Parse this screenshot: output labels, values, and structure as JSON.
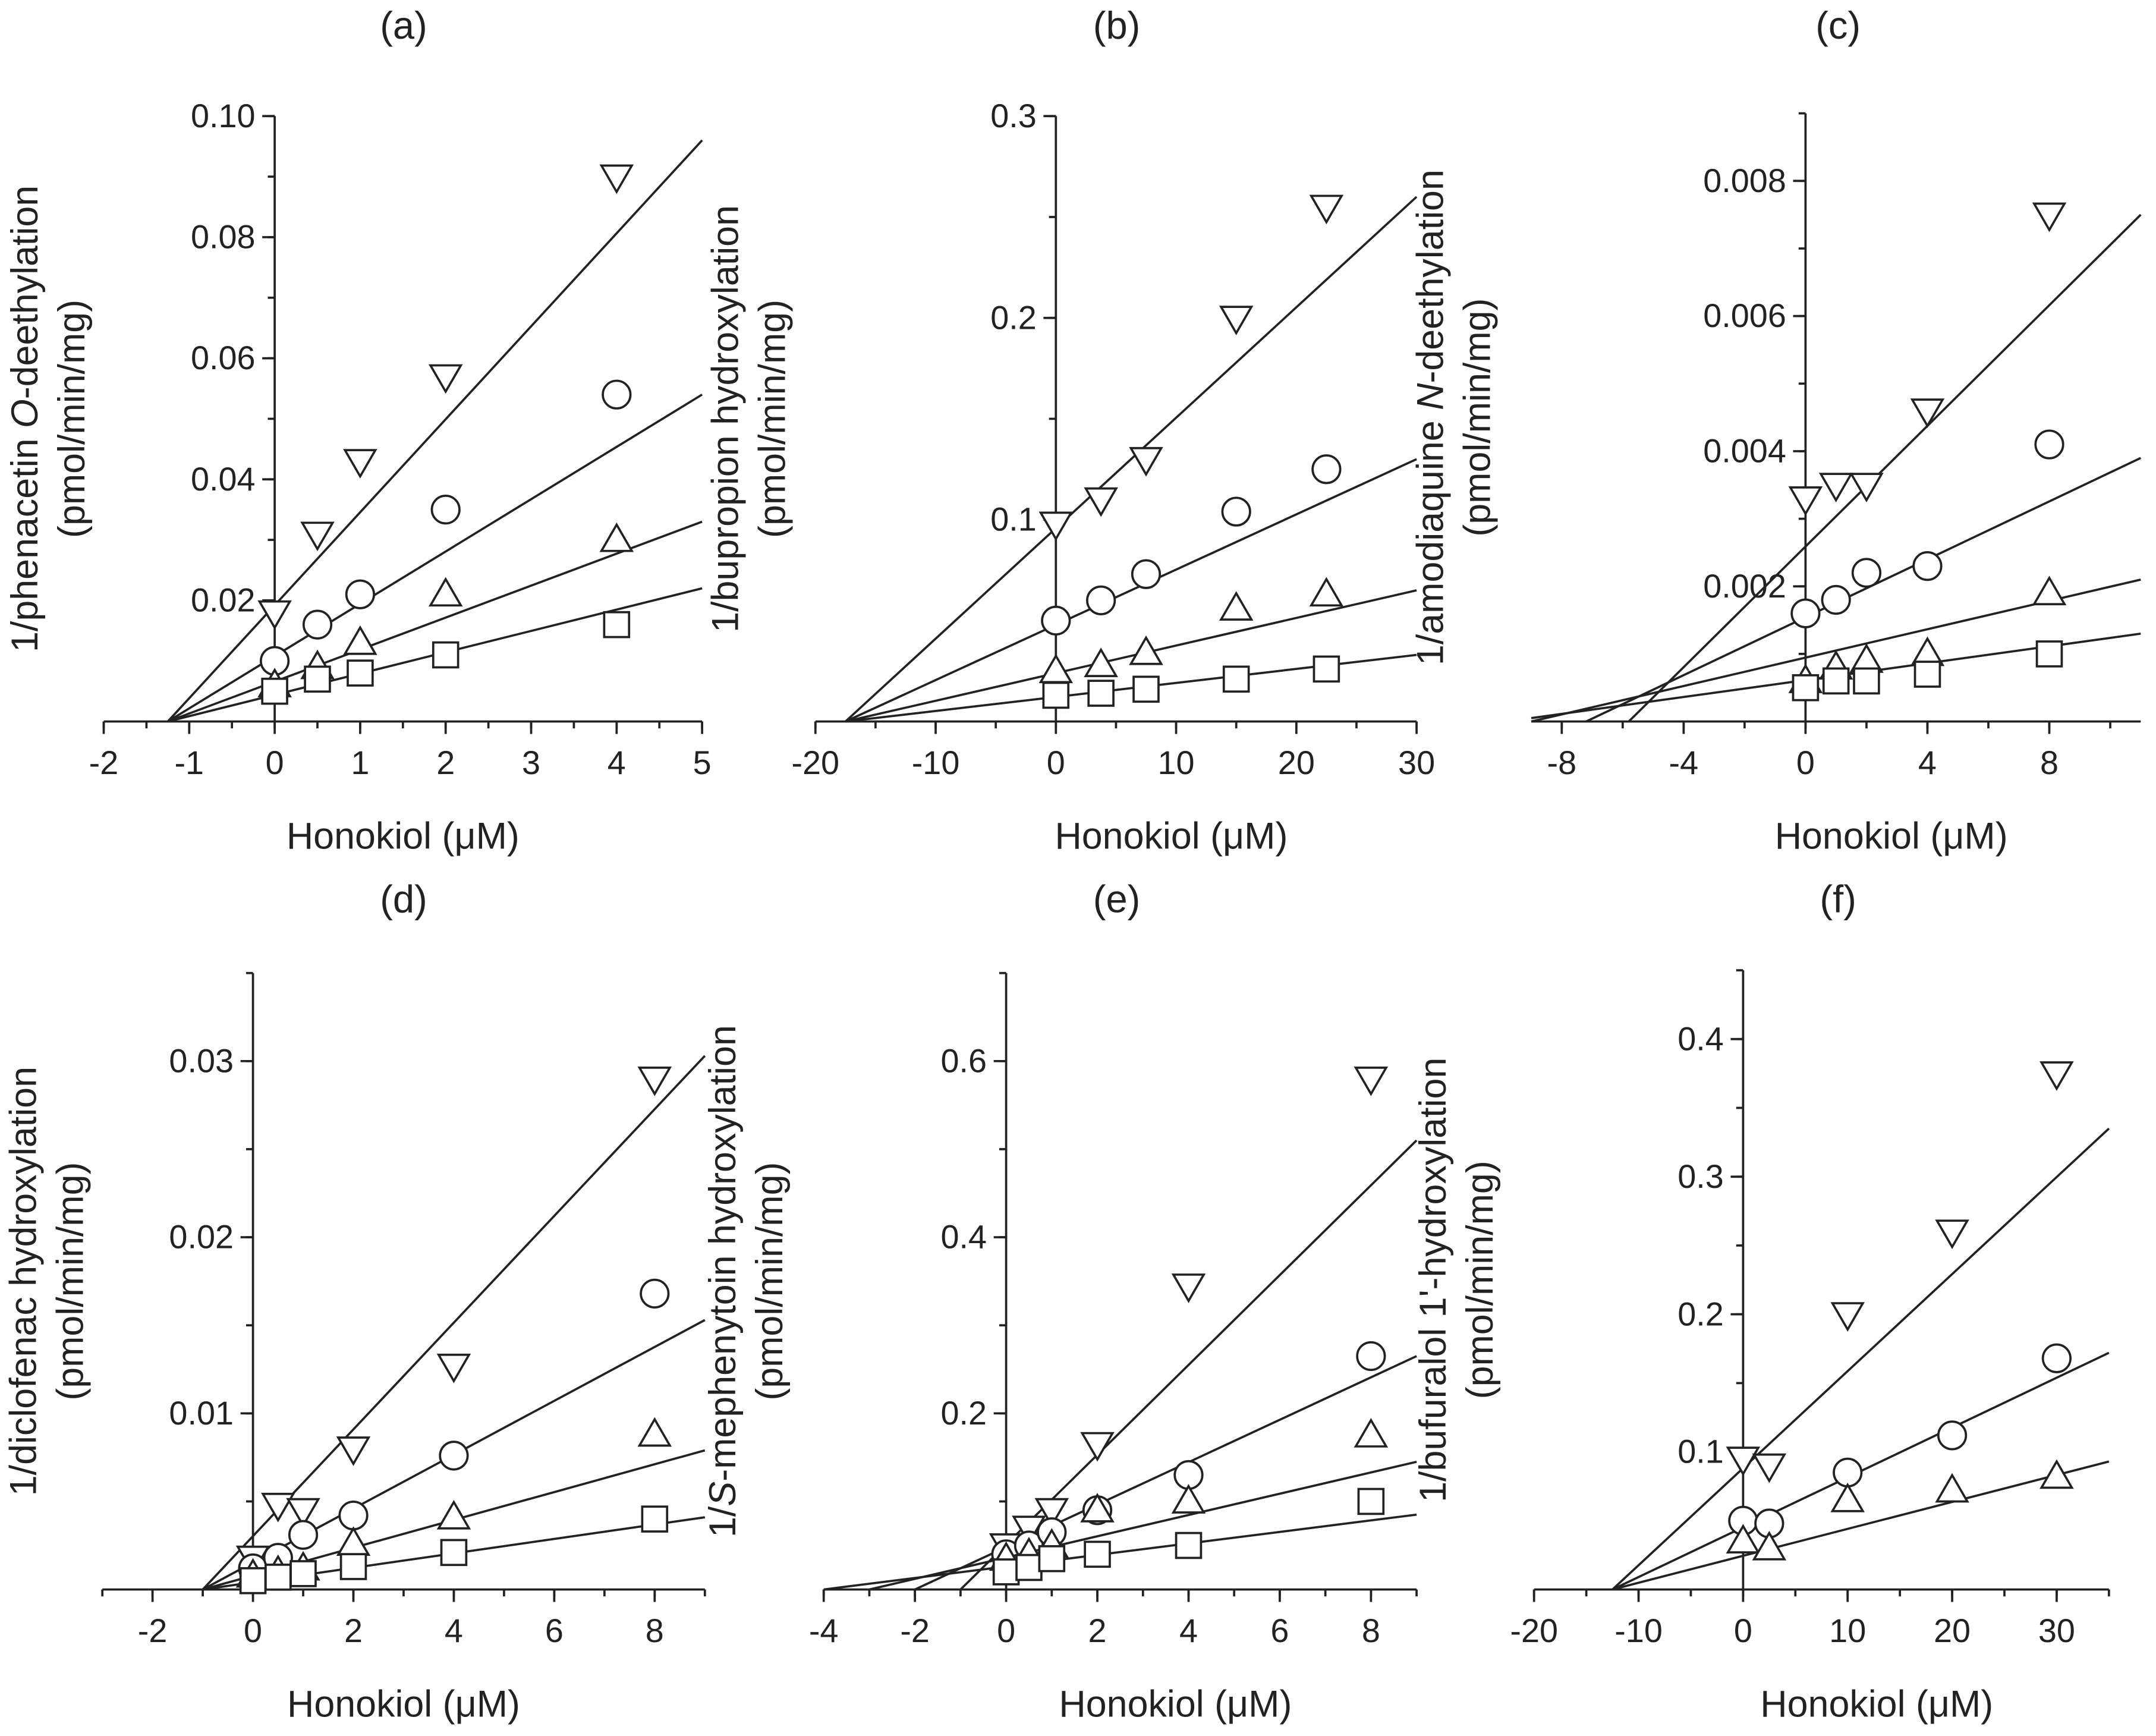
{
  "chart_data": [
    {
      "type": "scatter",
      "title": "(a)",
      "xlabel": "Honokiol (μM)",
      "ylabel": {
        "pre": "1/phenacetin ",
        "italic": "O",
        "post": "-deethylation",
        "units": "(pmol/min/mg)"
      },
      "xlim": [
        -2,
        5
      ],
      "ylim": [
        0,
        0.1
      ],
      "xticks": [
        "-2",
        "-1",
        "0",
        "1",
        "2",
        "3",
        "4",
        "5"
      ],
      "xtick_values": [
        -2,
        -1,
        0,
        1,
        2,
        3,
        4,
        5
      ],
      "yticks": [
        "0.02",
        "0.04",
        "0.06",
        "0.08",
        "0.10"
      ],
      "ytick_values": [
        0.02,
        0.04,
        0.06,
        0.08,
        0.1
      ],
      "x": [
        0,
        0.5,
        1,
        2,
        4
      ],
      "series": [
        {
          "marker": "triangle-down",
          "values": [
            0.018,
            0.031,
            0.043,
            0.057,
            0.09
          ],
          "line": [
            [
              -1.25,
              0
            ],
            [
              5,
              0.096
            ]
          ]
        },
        {
          "marker": "circle",
          "values": [
            0.01,
            0.016,
            0.021,
            0.035,
            0.054
          ],
          "line": [
            [
              -1.25,
              0
            ],
            [
              5,
              0.054
            ]
          ]
        },
        {
          "marker": "triangle-up",
          "values": [
            0.006,
            0.009,
            0.013,
            0.021,
            0.03
          ],
          "line": [
            [
              -1.25,
              0
            ],
            [
              5,
              0.033
            ]
          ]
        },
        {
          "marker": "square",
          "values": [
            0.005,
            0.007,
            0.008,
            0.011,
            0.016
          ],
          "line": [
            [
              -1.25,
              0
            ],
            [
              5,
              0.022
            ]
          ]
        }
      ]
    },
    {
      "type": "scatter",
      "title": "(b)",
      "xlabel": "Honokiol (μM)",
      "ylabel": {
        "pre": "1/bupropion hydroxylation",
        "italic": "",
        "post": "",
        "units": "(pmol/min/mg)"
      },
      "xlim": [
        -20,
        30
      ],
      "ylim": [
        0,
        0.3
      ],
      "xticks": [
        "-20",
        "-10",
        "0",
        "10",
        "20",
        "30"
      ],
      "xtick_values": [
        -20,
        -10,
        0,
        10,
        20,
        30
      ],
      "yticks": [
        "0.1",
        "0.2",
        "0.3"
      ],
      "ytick_values": [
        0.1,
        0.2,
        0.3
      ],
      "x": [
        0,
        3.75,
        7.5,
        15,
        22.5
      ],
      "series": [
        {
          "marker": "triangle-down",
          "values": [
            0.098,
            0.11,
            0.13,
            0.2,
            0.255
          ],
          "line": [
            [
              -17.5,
              0
            ],
            [
              30,
              0.26
            ]
          ]
        },
        {
          "marker": "circle",
          "values": [
            0.05,
            0.06,
            0.073,
            0.104,
            0.125
          ],
          "line": [
            [
              -17.5,
              0
            ],
            [
              30,
              0.13
            ]
          ]
        },
        {
          "marker": "triangle-up",
          "values": [
            0.025,
            0.028,
            0.034,
            0.056,
            0.063
          ],
          "line": [
            [
              -17.5,
              0
            ],
            [
              30,
              0.065
            ]
          ]
        },
        {
          "marker": "square",
          "values": [
            0.013,
            0.014,
            0.016,
            0.021,
            0.026
          ],
          "line": [
            [
              -17.5,
              0
            ],
            [
              30,
              0.033
            ]
          ]
        }
      ]
    },
    {
      "type": "scatter",
      "title": "(c)",
      "xlabel": "Honokiol (μM)",
      "ylabel": {
        "pre": "1/amodiaquine ",
        "italic": "N",
        "post": "-deethylation",
        "units": "(pmol/min/mg)"
      },
      "xlim": [
        -9,
        11
      ],
      "ylim": [
        0,
        0.009
      ],
      "xticks": [
        "-8",
        "-4",
        "0",
        "4",
        "8"
      ],
      "xtick_values": [
        -8,
        -4,
        0,
        4,
        8
      ],
      "yticks": [
        "0.002",
        "0.004",
        "0.006",
        "0.008"
      ],
      "ytick_values": [
        0.002,
        0.004,
        0.006,
        0.008
      ],
      "x": [
        0,
        1,
        2,
        4,
        8
      ],
      "series": [
        {
          "marker": "triangle-down",
          "values": [
            0.0033,
            0.0035,
            0.0035,
            0.0046,
            0.0075
          ],
          "line": [
            [
              -5.8,
              0
            ],
            [
              11,
              0.0075
            ]
          ]
        },
        {
          "marker": "circle",
          "values": [
            0.0016,
            0.0018,
            0.0022,
            0.0023,
            0.0041
          ],
          "line": [
            [
              -7.2,
              0
            ],
            [
              11,
              0.0039
            ]
          ]
        },
        {
          "marker": "triangle-up",
          "values": [
            0.0006,
            0.0008,
            0.0009,
            0.001,
            0.0019
          ],
          "line": [
            [
              -9,
              0
            ],
            [
              11,
              0.0021
            ]
          ]
        },
        {
          "marker": "square",
          "values": [
            0.0005,
            0.0006,
            0.0006,
            0.0007,
            0.001
          ],
          "line": [
            [
              -9,
              5e-05
            ],
            [
              11,
              0.0013
            ]
          ]
        }
      ]
    },
    {
      "type": "scatter",
      "title": "(d)",
      "xlabel": "Honokiol (μM)",
      "ylabel": {
        "pre": "1/diclofenac hydroxylation",
        "italic": "",
        "post": "",
        "units": "(pmol/min/mg)"
      },
      "xlim": [
        -3,
        9
      ],
      "ylim": [
        0,
        0.035
      ],
      "xticks": [
        "-2",
        "0",
        "2",
        "4",
        "6",
        "8"
      ],
      "xtick_values": [
        -2,
        0,
        2,
        4,
        6,
        8
      ],
      "yticks": [
        "0.01",
        "0.02",
        "0.03"
      ],
      "ytick_values": [
        0.01,
        0.02,
        0.03
      ],
      "x": [
        0,
        0.5,
        1,
        2,
        4,
        8
      ],
      "series": [
        {
          "marker": "triangle-down",
          "values": [
            0.0018,
            0.0048,
            0.0045,
            0.008,
            0.0127,
            0.029
          ],
          "line": [
            [
              -1,
              0
            ],
            [
              9,
              0.0303
            ]
          ]
        },
        {
          "marker": "circle",
          "values": [
            0.0012,
            0.0018,
            0.0031,
            0.0042,
            0.0076,
            0.0168
          ],
          "line": [
            [
              -1,
              0
            ],
            [
              9,
              0.0153
            ]
          ]
        },
        {
          "marker": "triangle-up",
          "values": [
            0.0008,
            0.001,
            0.0012,
            0.0026,
            0.0041,
            0.0088
          ],
          "line": [
            [
              -1,
              0
            ],
            [
              9,
              0.0079
            ]
          ]
        },
        {
          "marker": "square",
          "values": [
            0.0005,
            0.0007,
            0.0009,
            0.0013,
            0.0021,
            0.004
          ],
          "line": [
            [
              -1,
              0
            ],
            [
              9,
              0.0041
            ]
          ]
        }
      ]
    },
    {
      "type": "scatter",
      "title": "(e)",
      "xlabel": "Honokiol (μM)",
      "ylabel": {
        "pre": "1/",
        "italic": "S",
        "post": "-mephenytoin hydroxylation",
        "units": "(pmol/min/mg)"
      },
      "xlim": [
        -4,
        9
      ],
      "ylim": [
        0,
        0.7
      ],
      "xticks": [
        "-4",
        "-2",
        "0",
        "2",
        "4",
        "6",
        "8"
      ],
      "xtick_values": [
        -4,
        -2,
        0,
        2,
        4,
        6,
        8
      ],
      "yticks": [
        "0.2",
        "0.4",
        "0.6"
      ],
      "ytick_values": [
        0.2,
        0.4,
        0.6
      ],
      "x": [
        0,
        0.5,
        1,
        2,
        4,
        8
      ],
      "series": [
        {
          "marker": "triangle-down",
          "values": [
            0.05,
            0.07,
            0.09,
            0.165,
            0.345,
            0.58
          ],
          "line": [
            [
              -1,
              0
            ],
            [
              9,
              0.51
            ]
          ]
        },
        {
          "marker": "circle",
          "values": [
            0.04,
            0.05,
            0.065,
            0.09,
            0.13,
            0.265
          ],
          "line": [
            [
              -2,
              0
            ],
            [
              9,
              0.265
            ]
          ]
        },
        {
          "marker": "triangle-up",
          "values": [
            0.035,
            0.04,
            0.05,
            0.09,
            0.1,
            0.175
          ],
          "line": [
            [
              -3,
              0
            ],
            [
              9,
              0.145
            ]
          ]
        },
        {
          "marker": "square",
          "values": [
            0.02,
            0.025,
            0.035,
            0.04,
            0.05,
            0.1
          ],
          "line": [
            [
              -4,
              0
            ],
            [
              9,
              0.085
            ]
          ]
        }
      ]
    },
    {
      "type": "scatter",
      "title": "(f)",
      "xlabel": "Honokiol (μM)",
      "ylabel": {
        "pre": "1/bufuralol 1'-hydroxylation",
        "italic": "",
        "post": "",
        "units": "(pmol/min/mg)"
      },
      "xlim": [
        -20,
        35
      ],
      "ylim": [
        0,
        0.45
      ],
      "xticks": [
        "-20",
        "-10",
        "0",
        "10",
        "20",
        "30"
      ],
      "xtick_values": [
        -20,
        -10,
        0,
        10,
        20,
        30
      ],
      "yticks": [
        "0.1",
        "0.2",
        "0.3",
        "0.4"
      ],
      "ytick_values": [
        0.1,
        0.2,
        0.3,
        0.4
      ],
      "x": [
        0,
        2.5,
        10,
        20,
        30
      ],
      "series": [
        {
          "marker": "triangle-down",
          "values": [
            0.095,
            0.09,
            0.2,
            0.26,
            0.375
          ],
          "line": [
            [
              -12.5,
              0
            ],
            [
              35,
              0.335
            ]
          ]
        },
        {
          "marker": "circle",
          "values": [
            0.05,
            0.048,
            0.085,
            0.112,
            0.168
          ],
          "line": [
            [
              -12.5,
              0
            ],
            [
              35,
              0.172
            ]
          ]
        },
        {
          "marker": "triangle-up",
          "values": [
            0.035,
            0.03,
            0.065,
            0.072,
            0.082
          ],
          "line": [
            [
              -12.5,
              0
            ],
            [
              35,
              0.093
            ]
          ]
        }
      ]
    }
  ]
}
